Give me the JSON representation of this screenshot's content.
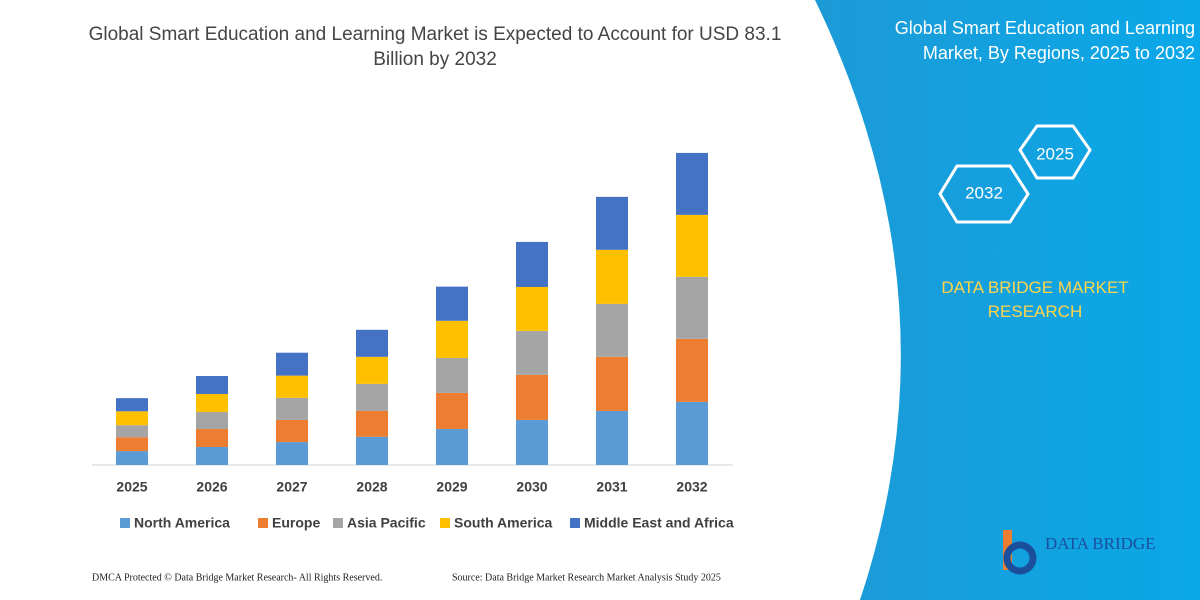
{
  "chart_data": {
    "type": "stacked_bar",
    "title": "Global Smart Education and Learning Market is Expected to Account for USD 83.1 Billion by 2032",
    "categories": [
      "2025",
      "2026",
      "2027",
      "2028",
      "2029",
      "2030",
      "2031",
      "2032"
    ],
    "series": [
      {
        "name": "North America",
        "color": "#5b9bd5",
        "values": [
          3.7,
          4.8,
          6.1,
          7.5,
          9.6,
          12.0,
          14.4,
          16.8
        ]
      },
      {
        "name": "Europe",
        "color": "#ed7d31",
        "values": [
          3.7,
          4.8,
          5.9,
          6.9,
          9.6,
          12.0,
          14.4,
          16.8
        ]
      },
      {
        "name": "Asia Pacific",
        "color": "#a5a5a5",
        "values": [
          3.2,
          4.5,
          5.9,
          7.2,
          9.3,
          11.7,
          14.1,
          16.5
        ]
      },
      {
        "name": "South America",
        "color": "#ffc000",
        "values": [
          3.7,
          4.8,
          5.9,
          7.2,
          9.9,
          11.7,
          14.4,
          16.5
        ]
      },
      {
        "name": "Middle East and Africa",
        "color": "#4472c4",
        "values": [
          3.5,
          4.8,
          6.1,
          7.2,
          9.1,
          12.0,
          14.1,
          16.5
        ]
      }
    ],
    "ylim": [
      0,
      90
    ],
    "legend": "bottom"
  },
  "panel": {
    "title": "Global Smart Education and Learning Market, By Regions, 2025 to 2032",
    "hexagons": [
      "2025",
      "2032"
    ],
    "brand": "DATA BRIDGE MARKET RESEARCH",
    "logo": "DATA BRIDGE"
  },
  "footer": {
    "left": "DMCA Protected © Data Bridge Market Research-  All Rights Reserved.",
    "right": "Source: Data Bridge Market Research  Market Analysis Study 2025"
  }
}
